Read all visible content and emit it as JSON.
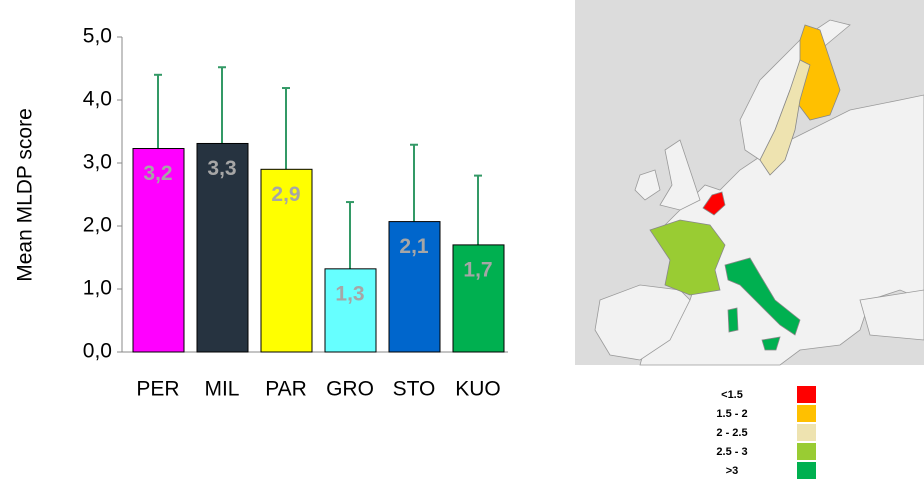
{
  "chart_data": {
    "type": "bar",
    "ylabel": "Mean MLDP score",
    "categories": [
      "PER",
      "MIL",
      "PAR",
      "GRO",
      "STO",
      "KUO"
    ],
    "values": [
      3.23,
      3.31,
      2.9,
      1.32,
      2.07,
      1.7
    ],
    "value_labels": [
      "3,2",
      "3,3",
      "2,9",
      "1,3",
      "2,1",
      "1,7"
    ],
    "errors": [
      1.17,
      1.21,
      1.29,
      1.06,
      1.22,
      1.1
    ],
    "colors": [
      "#ff00ff",
      "#263340",
      "#ffff00",
      "#66ffff",
      "#0066cc",
      "#00b050"
    ],
    "error_color": "#339966",
    "ylim": [
      0,
      5
    ],
    "yticks": [
      {
        "value": 0,
        "label": "0,0"
      },
      {
        "value": 1,
        "label": "1,0"
      },
      {
        "value": 2,
        "label": "2,0"
      },
      {
        "value": 3,
        "label": "3,0"
      },
      {
        "value": 4,
        "label": "4,0"
      },
      {
        "value": 5,
        "label": "5,0"
      }
    ]
  },
  "map": {
    "legend": [
      {
        "label": "<1.5",
        "color": "#ff0000"
      },
      {
        "label": "1.5 - 2",
        "color": "#ffc000"
      },
      {
        "label": "2 - 2.5",
        "color": "#eee3b0"
      },
      {
        "label": "2.5 - 3",
        "color": "#99cc33"
      },
      {
        "label": ">3",
        "color": "#00b050"
      }
    ]
  }
}
